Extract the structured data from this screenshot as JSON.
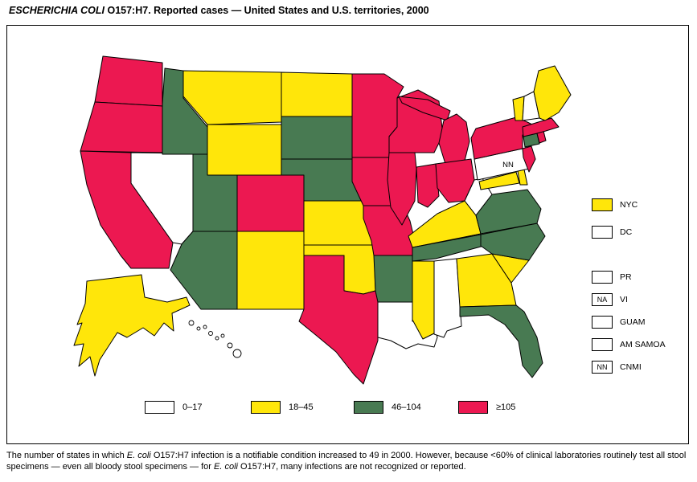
{
  "title": {
    "italic": "ESCHERICHIA COLI",
    "rest": " O157:H7. Reported cases — United States and U.S. territories, 2000"
  },
  "legend": {
    "categories": [
      {
        "label": "0–17",
        "color": "#ffffff"
      },
      {
        "label": "18–45",
        "color": "#ffe60a"
      },
      {
        "label": "46–104",
        "color": "#487a52"
      },
      {
        "label": "≥105",
        "color": "#ec1851"
      }
    ]
  },
  "territories": [
    {
      "label": "NYC",
      "category": 1,
      "box_text": ""
    },
    {
      "label": "DC",
      "category": 0,
      "box_text": ""
    },
    {
      "label": "PR",
      "category": 0,
      "box_text": ""
    },
    {
      "label": "VI",
      "category": null,
      "box_text": "NA"
    },
    {
      "label": "GUAM",
      "category": 0,
      "box_text": ""
    },
    {
      "label": "AM SAMOA",
      "category": 0,
      "box_text": ""
    },
    {
      "label": "CNMI",
      "category": null,
      "box_text": "NN"
    }
  ],
  "map": {
    "states": [
      {
        "abbr": "WA",
        "name": "Washington",
        "category": 3
      },
      {
        "abbr": "OR",
        "name": "Oregon",
        "category": 3
      },
      {
        "abbr": "CA",
        "name": "California",
        "category": 3
      },
      {
        "abbr": "NV",
        "name": "Nevada",
        "category": 0
      },
      {
        "abbr": "ID",
        "name": "Idaho",
        "category": 2
      },
      {
        "abbr": "MT",
        "name": "Montana",
        "category": 1
      },
      {
        "abbr": "WY",
        "name": "Wyoming",
        "category": 1
      },
      {
        "abbr": "UT",
        "name": "Utah",
        "category": 2
      },
      {
        "abbr": "CO",
        "name": "Colorado",
        "category": 3
      },
      {
        "abbr": "AZ",
        "name": "Arizona",
        "category": 2
      },
      {
        "abbr": "NM",
        "name": "New Mexico",
        "category": 1
      },
      {
        "abbr": "ND",
        "name": "North Dakota",
        "category": 1
      },
      {
        "abbr": "SD",
        "name": "South Dakota",
        "category": 2
      },
      {
        "abbr": "NE",
        "name": "Nebraska",
        "category": 2
      },
      {
        "abbr": "KS",
        "name": "Kansas",
        "category": 1
      },
      {
        "abbr": "OK",
        "name": "Oklahoma",
        "category": 1
      },
      {
        "abbr": "TX",
        "name": "Texas",
        "category": 3
      },
      {
        "abbr": "MN",
        "name": "Minnesota",
        "category": 3
      },
      {
        "abbr": "IA",
        "name": "Iowa",
        "category": 3
      },
      {
        "abbr": "MO",
        "name": "Missouri",
        "category": 3
      },
      {
        "abbr": "AR",
        "name": "Arkansas",
        "category": 2
      },
      {
        "abbr": "LA",
        "name": "Louisiana",
        "category": 0
      },
      {
        "abbr": "WI",
        "name": "Wisconsin",
        "category": 3
      },
      {
        "abbr": "IL",
        "name": "Illinois",
        "category": 3
      },
      {
        "abbr": "MI",
        "name": "Michigan",
        "category": 3
      },
      {
        "abbr": "IN",
        "name": "Indiana",
        "category": 3
      },
      {
        "abbr": "OH",
        "name": "Ohio",
        "category": 3
      },
      {
        "abbr": "KY",
        "name": "Kentucky",
        "category": 1
      },
      {
        "abbr": "TN",
        "name": "Tennessee",
        "category": 2
      },
      {
        "abbr": "MS",
        "name": "Mississippi",
        "category": 1
      },
      {
        "abbr": "AL",
        "name": "Alabama",
        "category": 0
      },
      {
        "abbr": "GA",
        "name": "Georgia",
        "category": 1
      },
      {
        "abbr": "FL",
        "name": "Florida",
        "category": 2
      },
      {
        "abbr": "SC",
        "name": "South Carolina",
        "category": 1
      },
      {
        "abbr": "NC",
        "name": "North Carolina",
        "category": 2
      },
      {
        "abbr": "VA",
        "name": "Virginia",
        "category": 2
      },
      {
        "abbr": "WV",
        "name": "West Virginia",
        "category": 0
      },
      {
        "abbr": "MD",
        "name": "Maryland",
        "category": 1
      },
      {
        "abbr": "DE",
        "name": "Delaware",
        "category": 1
      },
      {
        "abbr": "PA",
        "name": "Pennsylvania",
        "category": 0
      },
      {
        "abbr": "NJ",
        "name": "New Jersey",
        "category": 3
      },
      {
        "abbr": "NY",
        "name": "New York",
        "category": 3
      },
      {
        "abbr": "CT",
        "name": "Connecticut",
        "category": 2
      },
      {
        "abbr": "RI",
        "name": "Rhode Island",
        "category": 3
      },
      {
        "abbr": "MA",
        "name": "Massachusetts",
        "category": 3
      },
      {
        "abbr": "VT",
        "name": "Vermont",
        "category": 1
      },
      {
        "abbr": "NH",
        "name": "New Hampshire",
        "category": 0
      },
      {
        "abbr": "ME",
        "name": "Maine",
        "category": 1
      },
      {
        "abbr": "AK",
        "name": "Alaska",
        "category": 1
      },
      {
        "abbr": "HI",
        "name": "Hawaii",
        "category": 0
      }
    ],
    "state_labels": [
      {
        "state": "PA",
        "text": "NN"
      }
    ]
  },
  "footnote": {
    "segments": [
      {
        "text": "The number of states in which ",
        "italic": false
      },
      {
        "text": "E. coli",
        "italic": true
      },
      {
        "text": " O157:H7 infection is a notifiable condition increased to 49 in 2000. However, because <60% of clinical laboratories routinely test all stool specimens — even all bloody stool specimens — for ",
        "italic": false
      },
      {
        "text": "E. coli",
        "italic": true
      },
      {
        "text": " O157:H7, many infections are not recognized or reported.",
        "italic": false
      }
    ]
  }
}
